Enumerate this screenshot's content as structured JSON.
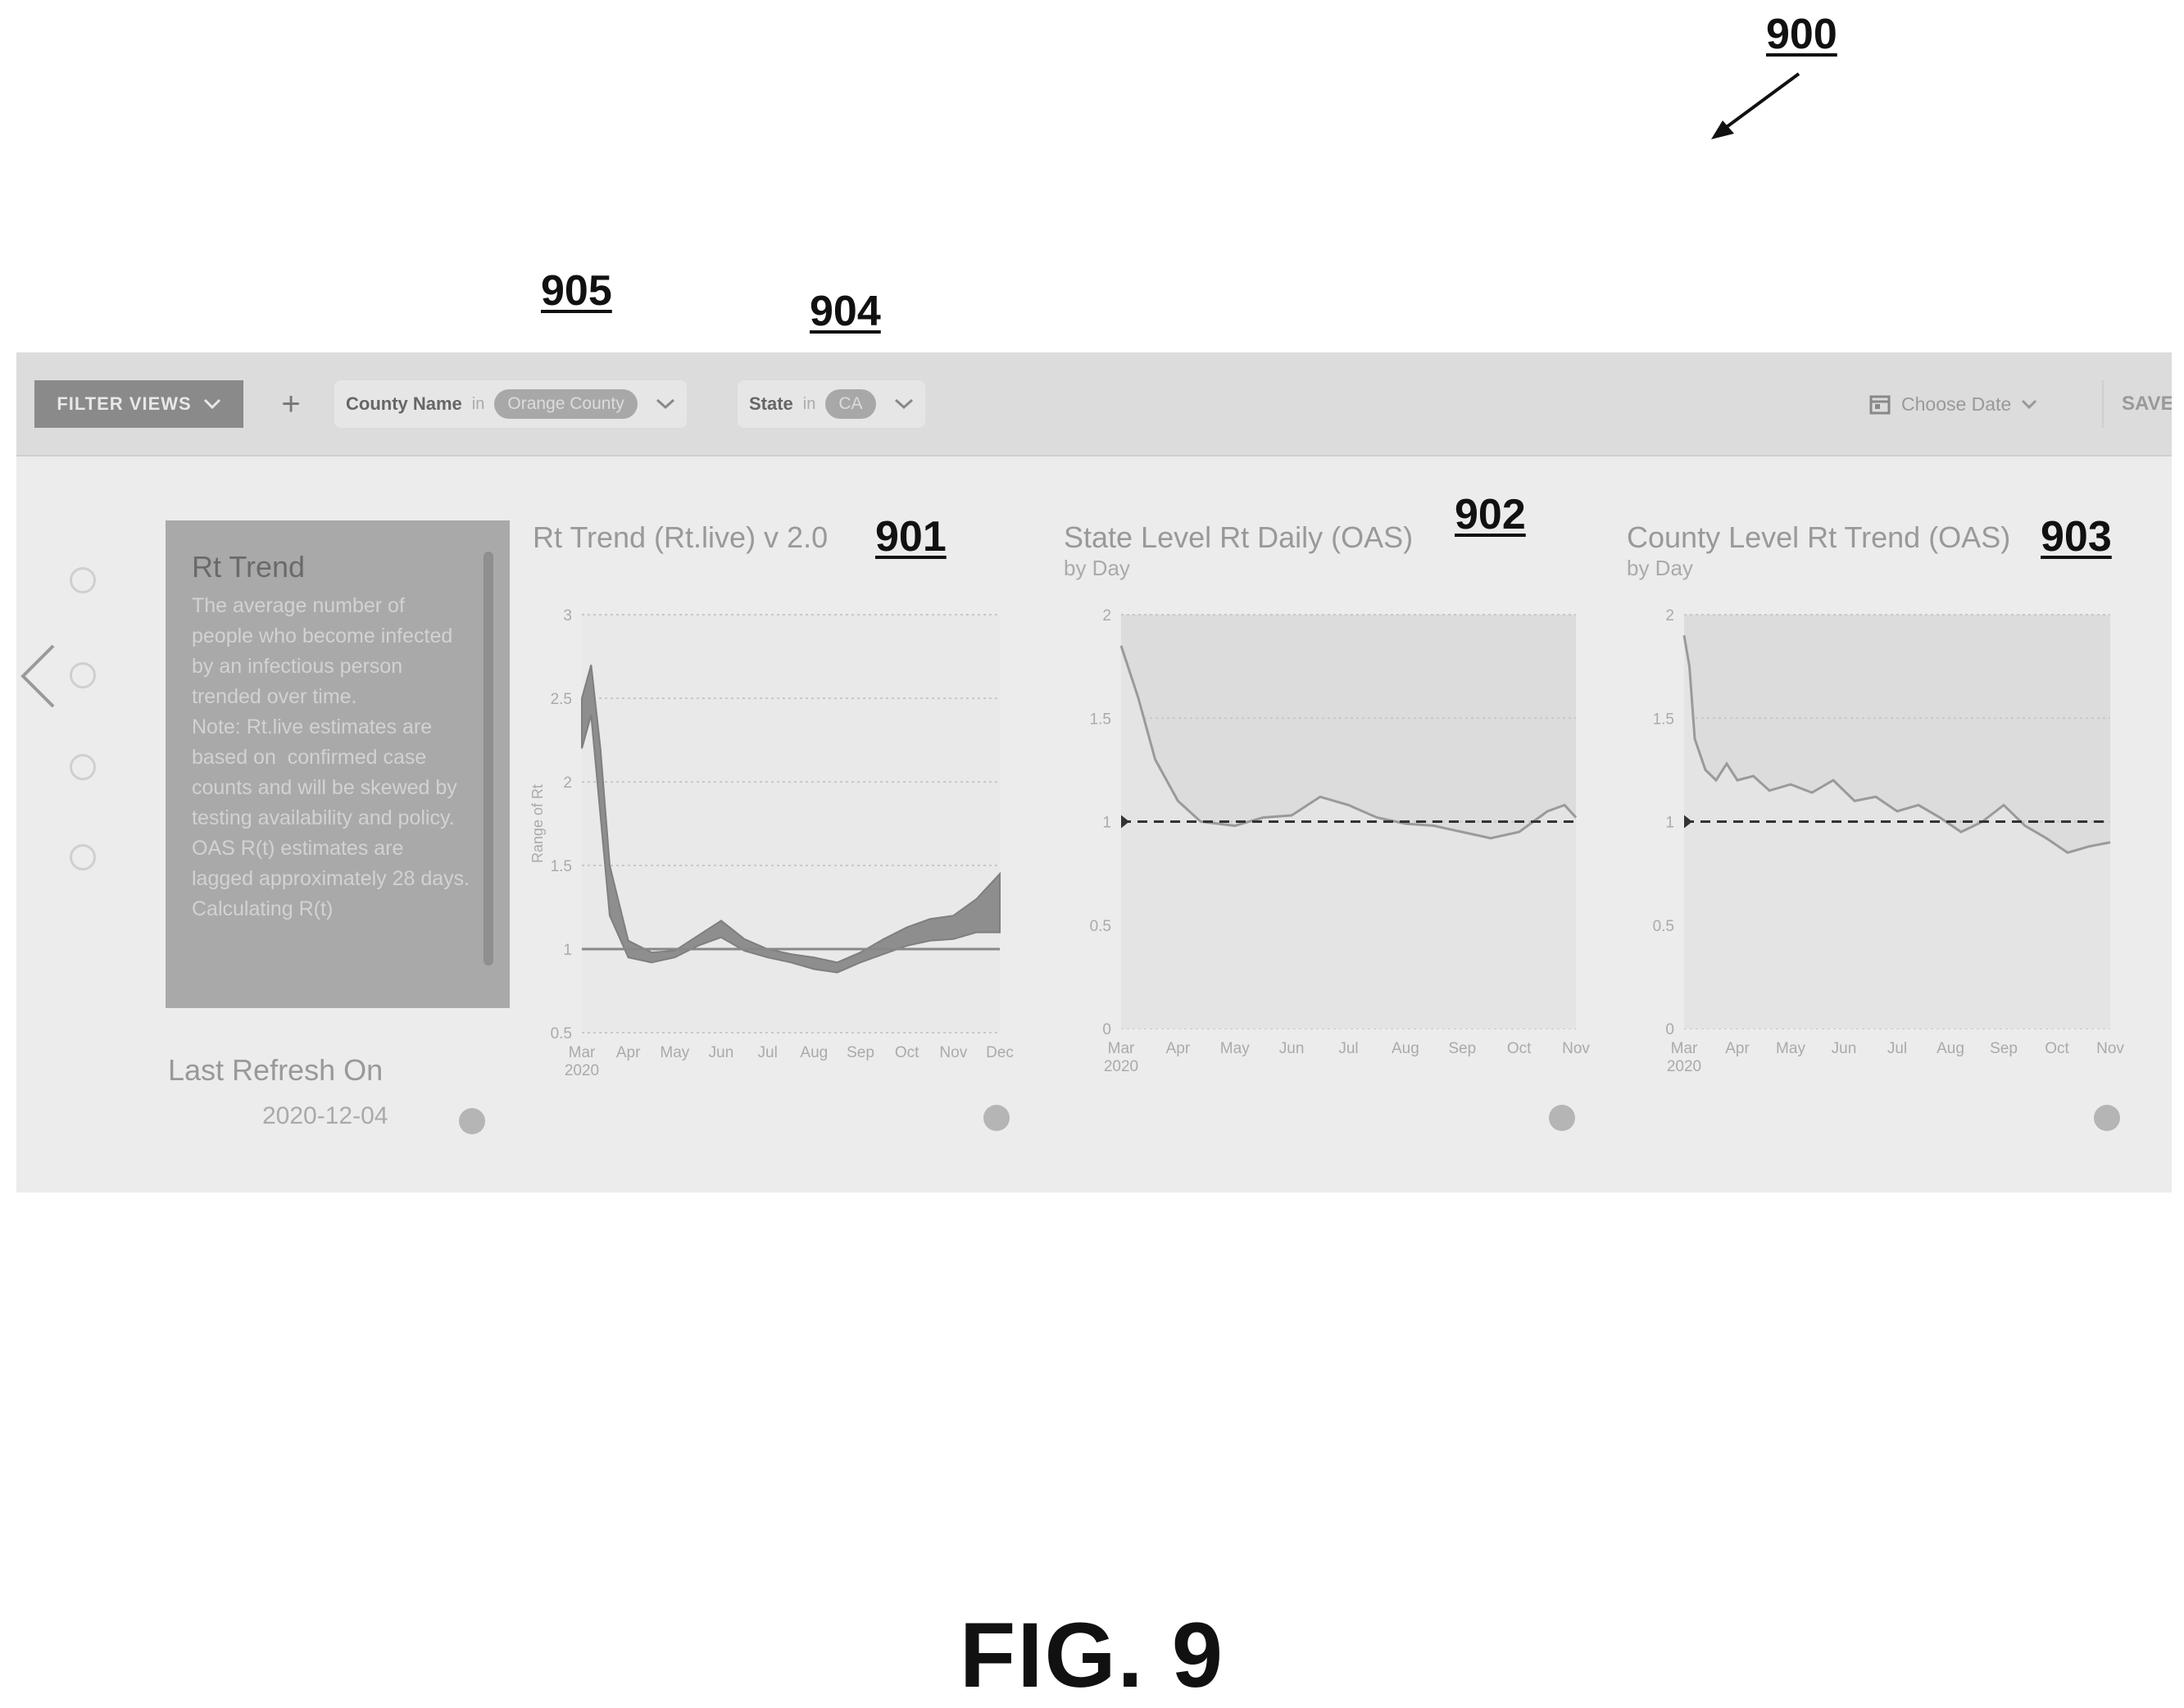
{
  "figure": {
    "refs": {
      "r900": "900",
      "r905": "905",
      "r904": "904",
      "r901": "901",
      "r902": "902",
      "r903": "903"
    },
    "caption": "FIG. 9"
  },
  "filter_bar": {
    "filter_views_label": "FILTER VIEWS",
    "add_label": "+",
    "chips": [
      {
        "key": "County Name",
        "op": "in",
        "value": "Orange County"
      },
      {
        "key": "State",
        "op": "in",
        "value": "CA"
      }
    ],
    "choose_date": "Choose Date",
    "save_label": "SAVE"
  },
  "info_card": {
    "title": "Rt Trend",
    "body": "The average number of people who become infected by an infectious person trended over time.\nNote: Rt.live estimates are based on  confirmed case counts and will be skewed by testing availability and policy. OAS R(t) estimates are lagged approximately 28 days. Calculating R(t)"
  },
  "last_refresh": {
    "label": "Last Refresh On",
    "value": "2020-12-04"
  },
  "icons": {
    "chevron": "chevron-left-icon",
    "calendar": "calendar-icon",
    "info": "info-icon"
  },
  "charts": {
    "c1": {
      "title": "Rt Trend (Rt.live) v 2.0",
      "subtitle": ""
    },
    "c2": {
      "title": "State Level Rt Daily (OAS)",
      "subtitle": "by Day"
    },
    "c3": {
      "title": "County Level Rt Trend (OAS)",
      "subtitle": "by Day"
    }
  },
  "chart_data": [
    {
      "type": "area",
      "title": "Rt Trend (Rt.live) v 2.0",
      "xlabel": "",
      "ylabel": "Range of Rt",
      "x_ticks": [
        "Mar\n2020",
        "Apr",
        "May",
        "Jun",
        "Jul",
        "Aug",
        "Sep",
        "Oct",
        "Nov",
        "Dec"
      ],
      "y_ticks": [
        "0.5",
        "1",
        "1.5",
        "2",
        "2.5",
        "3"
      ],
      "ylim": [
        0.5,
        3
      ],
      "reference_line": 1,
      "grid": true,
      "x": [
        0,
        0.2,
        0.4,
        0.6,
        1,
        1.5,
        2,
        2.5,
        3,
        3.5,
        4,
        4.5,
        5,
        5.5,
        6,
        6.5,
        7,
        7.5,
        8,
        8.5,
        9
      ],
      "series": [
        {
          "name": "upper",
          "values": [
            2.5,
            2.7,
            2.2,
            1.5,
            1.05,
            0.98,
            0.99,
            1.08,
            1.17,
            1.06,
            1.0,
            0.97,
            0.95,
            0.92,
            0.98,
            1.06,
            1.13,
            1.18,
            1.2,
            1.3,
            1.45
          ]
        },
        {
          "name": "lower",
          "values": [
            2.2,
            2.4,
            1.8,
            1.2,
            0.95,
            0.92,
            0.95,
            1.02,
            1.07,
            0.99,
            0.95,
            0.92,
            0.88,
            0.86,
            0.92,
            0.97,
            1.02,
            1.05,
            1.06,
            1.1,
            1.1
          ]
        }
      ]
    },
    {
      "type": "line",
      "title": "State Level Rt Daily (OAS)",
      "subtitle": "by Day",
      "x_ticks": [
        "Mar\n2020",
        "Apr",
        "May",
        "Jun",
        "Jul",
        "Aug",
        "Sep",
        "Oct",
        "Nov"
      ],
      "y_ticks": [
        "0",
        "0.5",
        "1",
        "1.5",
        "2"
      ],
      "ylim": [
        0,
        2
      ],
      "reference_line": 1,
      "grid": true,
      "x": [
        0,
        0.3,
        0.6,
        1,
        1.4,
        2,
        2.5,
        3,
        3.5,
        4,
        4.5,
        5,
        5.5,
        6,
        6.5,
        7,
        7.5,
        7.8,
        8
      ],
      "series": [
        {
          "name": "Rt",
          "values": [
            1.85,
            1.6,
            1.3,
            1.1,
            1.0,
            0.98,
            1.02,
            1.03,
            1.12,
            1.08,
            1.02,
            0.99,
            0.98,
            0.95,
            0.92,
            0.95,
            1.05,
            1.08,
            1.02
          ]
        }
      ]
    },
    {
      "type": "line",
      "title": "County Level Rt Trend (OAS)",
      "subtitle": "by Day",
      "x_ticks": [
        "Mar\n2020",
        "Apr",
        "May",
        "Jun",
        "Jul",
        "Aug",
        "Sep",
        "Oct",
        "Nov"
      ],
      "y_ticks": [
        "0",
        "0.5",
        "1",
        "1.5",
        "2"
      ],
      "ylim": [
        0,
        2
      ],
      "reference_line": 1,
      "grid": true,
      "x": [
        0,
        0.1,
        0.2,
        0.4,
        0.6,
        0.8,
        1,
        1.3,
        1.6,
        2,
        2.4,
        2.8,
        3.2,
        3.6,
        4,
        4.4,
        4.8,
        5.2,
        5.6,
        6,
        6.4,
        6.8,
        7.2,
        7.6,
        8
      ],
      "series": [
        {
          "name": "Rt",
          "values": [
            1.9,
            1.75,
            1.4,
            1.25,
            1.2,
            1.28,
            1.2,
            1.22,
            1.15,
            1.18,
            1.14,
            1.2,
            1.1,
            1.12,
            1.05,
            1.08,
            1.02,
            0.95,
            1.0,
            1.08,
            0.98,
            0.92,
            0.85,
            0.88,
            0.9
          ]
        }
      ]
    }
  ]
}
